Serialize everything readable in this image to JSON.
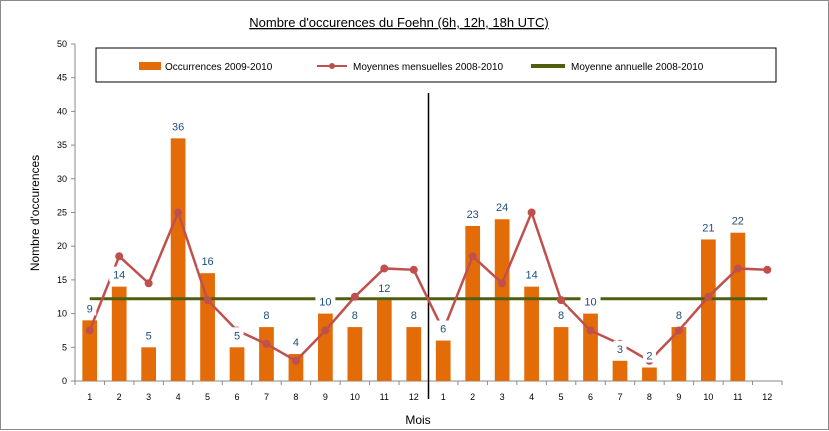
{
  "chart_data": {
    "type": "bar",
    "title": "Nombre d'occurences du Foehn (6h, 12h, 18h UTC)",
    "xlabel": "Mois",
    "ylabel": "Nombre d'occurences",
    "ylim": [
      0,
      50
    ],
    "yticks": [
      "0",
      "5",
      "10",
      "15",
      "20",
      "25",
      "30",
      "35",
      "40",
      "45",
      "50"
    ],
    "categories": [
      "1",
      "2",
      "3",
      "4",
      "5",
      "6",
      "7",
      "8",
      "9",
      "10",
      "11",
      "12",
      "1",
      "2",
      "3",
      "4",
      "5",
      "6",
      "7",
      "8",
      "9",
      "10",
      "11",
      "12"
    ],
    "grid": false,
    "legend_position": "top",
    "series": [
      {
        "name": "Occurrences 2009-2010",
        "kind": "bar",
        "color": "#e36c09",
        "values": [
          9,
          14,
          5,
          36,
          16,
          5,
          8,
          4,
          10,
          8,
          12,
          8,
          6,
          23,
          24,
          14,
          8,
          10,
          3,
          2,
          8,
          21,
          22,
          null
        ],
        "labels": [
          "9",
          "14",
          "5",
          "36",
          "16",
          "5",
          "8",
          "4",
          "10",
          "8",
          "12",
          "8",
          "6",
          "23",
          "24",
          "14",
          "8",
          "10",
          "3",
          "2",
          "8",
          "21",
          "22",
          ""
        ]
      },
      {
        "name": "Moyennes mensuelles 2008-2010",
        "kind": "line",
        "color": "#c0504d",
        "values": [
          7.5,
          18.5,
          14.5,
          25,
          12,
          7.5,
          5.5,
          3,
          7.5,
          12.5,
          16.7,
          16.5,
          7.5,
          18.5,
          14.5,
          25,
          12,
          7.5,
          5.5,
          3,
          7.5,
          12.5,
          16.7,
          16.5
        ]
      },
      {
        "name": "Moyenne annuelle 2008-2010",
        "kind": "line",
        "color": "#4f5f0f",
        "constant": 12.2
      }
    ],
    "separator_after_index": 11
  }
}
